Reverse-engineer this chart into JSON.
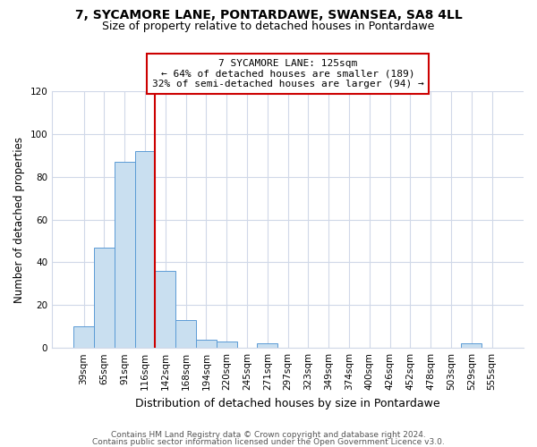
{
  "title": "7, SYCAMORE LANE, PONTARDAWE, SWANSEA, SA8 4LL",
  "subtitle": "Size of property relative to detached houses in Pontardawe",
  "xlabel": "Distribution of detached houses by size in Pontardawe",
  "ylabel": "Number of detached properties",
  "bar_labels": [
    "39sqm",
    "65sqm",
    "91sqm",
    "116sqm",
    "142sqm",
    "168sqm",
    "194sqm",
    "220sqm",
    "245sqm",
    "271sqm",
    "297sqm",
    "323sqm",
    "349sqm",
    "374sqm",
    "400sqm",
    "426sqm",
    "452sqm",
    "478sqm",
    "503sqm",
    "529sqm",
    "555sqm"
  ],
  "bar_heights": [
    10,
    47,
    87,
    92,
    36,
    13,
    4,
    3,
    0,
    2,
    0,
    0,
    0,
    0,
    0,
    0,
    0,
    0,
    0,
    2,
    0
  ],
  "bar_color": "#c9dff0",
  "bar_edge_color": "#5b9bd5",
  "vline_color": "#cc0000",
  "vline_x": 3.5,
  "annotation_line1": "7 SYCAMORE LANE: 125sqm",
  "annotation_line2": "← 64% of detached houses are smaller (189)",
  "annotation_line3": "32% of semi-detached houses are larger (94) →",
  "annotation_box_color": "#ffffff",
  "annotation_box_edge": "#cc0000",
  "ylim": [
    0,
    120
  ],
  "yticks": [
    0,
    20,
    40,
    60,
    80,
    100,
    120
  ],
  "title_fontsize": 10,
  "subtitle_fontsize": 9,
  "annot_fontsize": 8,
  "footer_line1": "Contains HM Land Registry data © Crown copyright and database right 2024.",
  "footer_line2": "Contains public sector information licensed under the Open Government Licence v3.0.",
  "background_color": "#ffffff",
  "grid_color": "#d0d8e8",
  "footer_fontsize": 6.5,
  "ylabel_fontsize": 8.5,
  "xlabel_fontsize": 9,
  "tick_fontsize": 7.5
}
